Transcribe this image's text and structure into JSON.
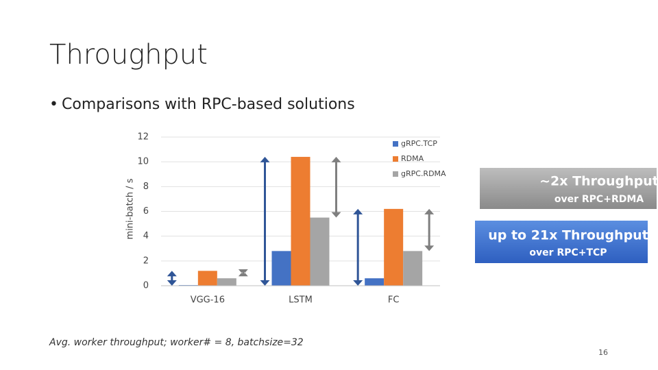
{
  "title": "Throughput",
  "bullet": "Comparisons with RPC-based solutions",
  "chart_data": {
    "type": "bar",
    "y_label": "mini-batch / s",
    "categories": [
      "VGG-16",
      "LSTM",
      "FC"
    ],
    "series": [
      {
        "name": "gRPC.TCP",
        "color": "#4472c4",
        "values": [
          0.05,
          2.8,
          0.6
        ]
      },
      {
        "name": "RDMA",
        "color": "#ed7d31",
        "values": [
          1.2,
          10.4,
          6.2
        ]
      },
      {
        "name": "gRPC.RDMA",
        "color": "#a5a5a5",
        "values": [
          0.6,
          5.5,
          2.8
        ]
      }
    ],
    "ylim": [
      0,
      12
    ],
    "yticks": [
      0,
      2,
      4,
      6,
      8,
      10,
      12
    ],
    "grid": true,
    "legend": "top-right"
  },
  "callouts": [
    {
      "headline": "~2x Throughput",
      "detail": "over RPC+RDMA"
    },
    {
      "headline": "up to 21x Throughput",
      "detail": "over RPC+TCP"
    }
  ],
  "footnote": "Avg. worker throughput; worker# = 8, batchsize=32",
  "page_number": "16"
}
